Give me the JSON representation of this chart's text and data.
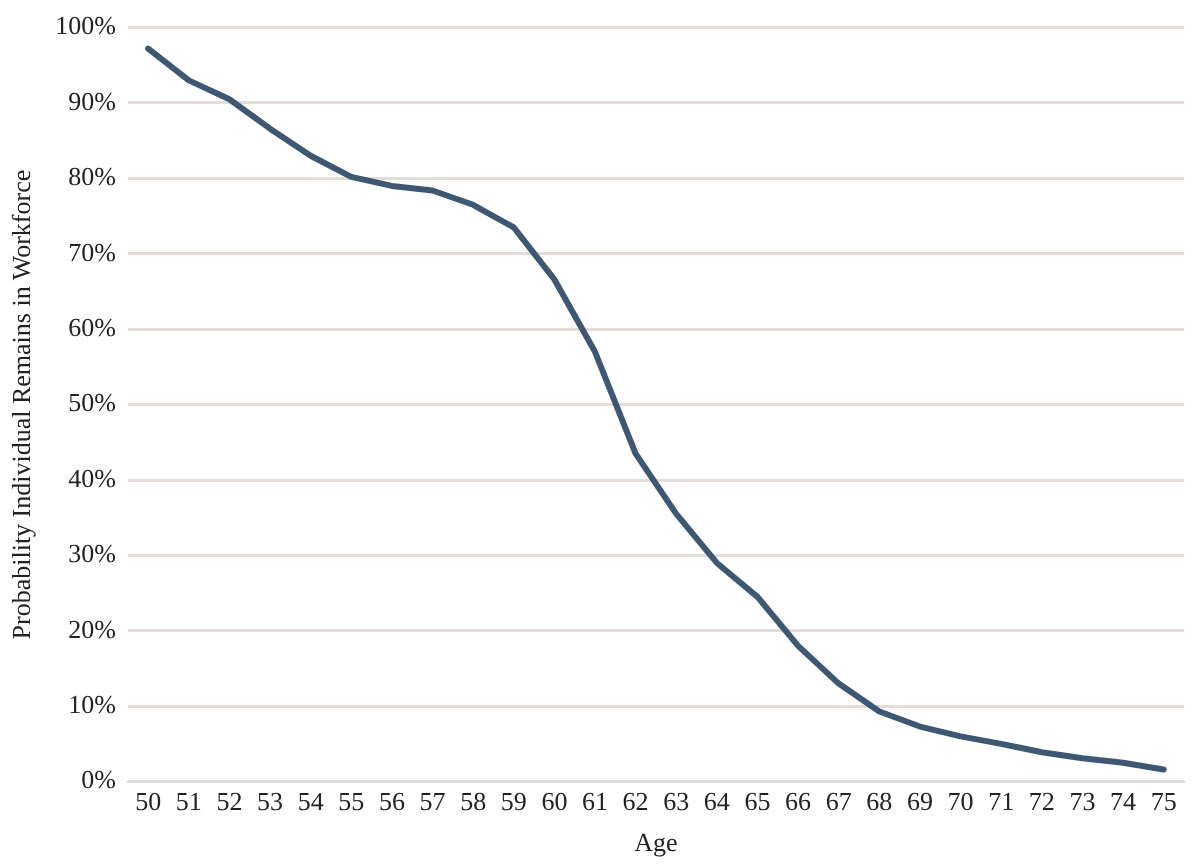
{
  "chart_data": {
    "type": "line",
    "xlabel": "Age",
    "ylabel": "Probability Individual Remains in Workforce",
    "categories": [
      "50",
      "51",
      "52",
      "53",
      "54",
      "55",
      "56",
      "57",
      "58",
      "59",
      "60",
      "61",
      "62",
      "63",
      "64",
      "65",
      "66",
      "67",
      "68",
      "69",
      "70",
      "71",
      "72",
      "73",
      "74",
      "75"
    ],
    "series": [
      {
        "color": "#3e5873",
        "values": [
          97.2,
          93,
          90.5,
          86.6,
          83,
          80.2,
          79,
          78.4,
          76.5,
          73.5,
          66.6,
          57,
          43.5,
          35.5,
          29,
          24.5,
          18,
          13,
          9.3,
          7.3,
          6,
          5,
          3.9,
          3.1,
          2.5,
          1.6
        ]
      }
    ],
    "ylim": [
      0,
      100
    ],
    "yticks": [
      {
        "value": 0,
        "label": "0%"
      },
      {
        "value": 10,
        "label": "10%"
      },
      {
        "value": 20,
        "label": "20%"
      },
      {
        "value": 30,
        "label": "30%"
      },
      {
        "value": 40,
        "label": "40%"
      },
      {
        "value": 50,
        "label": "50%"
      },
      {
        "value": 60,
        "label": "60%"
      },
      {
        "value": 70,
        "label": "70%"
      },
      {
        "value": 80,
        "label": "80%"
      },
      {
        "value": 90,
        "label": "90%"
      },
      {
        "value": 100,
        "label": "100%"
      }
    ],
    "grid": "y",
    "legend": false,
    "marker": "none",
    "line_style": "solid"
  }
}
